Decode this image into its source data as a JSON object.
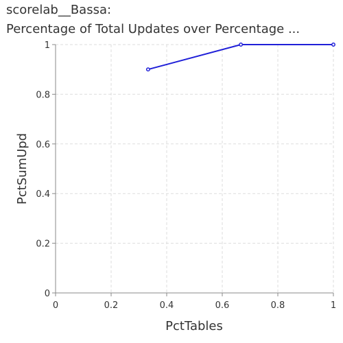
{
  "chart_data": {
    "type": "line",
    "title_lines": [
      "scorelab__Bassa:",
      "Percentage of Total Updates over Percentage ..."
    ],
    "xlabel": "PctTables",
    "ylabel": "PctSumUpd",
    "xlim": [
      0,
      1
    ],
    "ylim": [
      0,
      1
    ],
    "x_ticks": [
      0,
      0.2,
      0.4,
      0.6,
      0.8,
      1
    ],
    "y_ticks": [
      0,
      0.2,
      0.4,
      0.6,
      0.8,
      1
    ],
    "x_tick_labels": [
      "0",
      "0.2",
      "0.4",
      "0.6",
      "0.8",
      "1"
    ],
    "y_tick_labels": [
      "0",
      "0.2",
      "0.4",
      "0.6",
      "0.8",
      "1"
    ],
    "grid": true,
    "series": [
      {
        "color": "#1f1fd8",
        "points": [
          {
            "x": 0.333,
            "y": 0.9
          },
          {
            "x": 0.667,
            "y": 1.0
          },
          {
            "x": 1.0,
            "y": 1.0
          }
        ]
      }
    ]
  }
}
